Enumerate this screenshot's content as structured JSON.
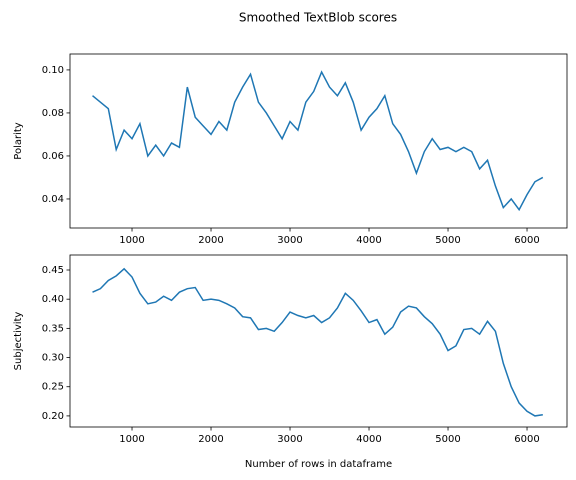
{
  "title": "Smoothed TextBlob scores",
  "chart_data": [
    {
      "type": "line",
      "ylabel": "Polarity",
      "x": [
        500,
        600,
        700,
        800,
        900,
        1000,
        1100,
        1200,
        1300,
        1400,
        1500,
        1600,
        1700,
        1800,
        1900,
        2000,
        2100,
        2200,
        2300,
        2400,
        2500,
        2600,
        2700,
        2800,
        2900,
        3000,
        3100,
        3200,
        3300,
        3400,
        3500,
        3600,
        3700,
        3800,
        3900,
        4000,
        4100,
        4200,
        4300,
        4400,
        4500,
        4600,
        4700,
        4800,
        4900,
        5000,
        5100,
        5200,
        5300,
        5400,
        5500,
        5600,
        5700,
        5800,
        5900,
        6000,
        6100,
        6200
      ],
      "series": [
        {
          "color": "#1f77b4",
          "values": [
            0.088,
            0.085,
            0.082,
            0.063,
            0.072,
            0.068,
            0.075,
            0.06,
            0.065,
            0.06,
            0.066,
            0.064,
            0.092,
            0.078,
            0.074,
            0.07,
            0.076,
            0.072,
            0.085,
            0.092,
            0.098,
            0.085,
            0.08,
            0.074,
            0.068,
            0.076,
            0.072,
            0.085,
            0.09,
            0.099,
            0.092,
            0.088,
            0.094,
            0.085,
            0.072,
            0.078,
            0.082,
            0.088,
            0.075,
            0.07,
            0.062,
            0.052,
            0.062,
            0.068,
            0.063,
            0.064,
            0.062,
            0.064,
            0.062,
            0.054,
            0.058,
            0.046,
            0.036,
            0.04,
            0.035,
            0.042,
            0.048,
            0.05
          ]
        }
      ],
      "xlim": [
        215,
        6506
      ],
      "xticks": [
        1000,
        2000,
        3000,
        4000,
        5000,
        6000
      ],
      "ylim": [
        0.0265,
        0.1074
      ],
      "yticks": [
        0.04,
        0.06,
        0.08,
        {
          "value": 0.1,
          "label": "0.10"
        }
      ]
    },
    {
      "type": "line",
      "xlabel": "Number of rows in dataframe",
      "ylabel": "Subjectivity",
      "x": [
        500,
        600,
        700,
        800,
        900,
        1000,
        1100,
        1200,
        1300,
        1400,
        1500,
        1600,
        1700,
        1800,
        1900,
        2000,
        2100,
        2200,
        2300,
        2400,
        2500,
        2600,
        2700,
        2800,
        2900,
        3000,
        3100,
        3200,
        3300,
        3400,
        3500,
        3600,
        3700,
        3800,
        3900,
        4000,
        4100,
        4200,
        4300,
        4400,
        4500,
        4600,
        4700,
        4800,
        4900,
        5000,
        5100,
        5200,
        5300,
        5400,
        5500,
        5600,
        5700,
        5800,
        5900,
        6000,
        6100,
        6200
      ],
      "series": [
        {
          "color": "#1f77b4",
          "values": [
            0.412,
            0.418,
            0.432,
            0.44,
            0.452,
            0.438,
            0.41,
            0.392,
            0.395,
            0.405,
            0.398,
            0.412,
            0.418,
            0.42,
            0.398,
            0.4,
            0.398,
            0.392,
            0.385,
            0.37,
            0.368,
            0.348,
            0.35,
            0.345,
            0.36,
            0.378,
            0.372,
            0.368,
            0.372,
            0.36,
            0.368,
            0.385,
            0.41,
            0.398,
            0.38,
            0.36,
            0.365,
            0.34,
            0.352,
            0.378,
            0.388,
            0.385,
            0.37,
            0.358,
            0.34,
            0.312,
            0.32,
            0.348,
            0.35,
            0.34,
            0.362,
            0.345,
            0.29,
            0.25,
            0.222,
            0.208,
            0.2,
            0.202
          ]
        }
      ],
      "xlim": [
        215,
        6506
      ],
      "xticks": [
        1000,
        2000,
        3000,
        4000,
        5000,
        6000
      ],
      "ylim": [
        0.181,
        0.4757
      ],
      "yticks": [
        {
          "value": 0.2,
          "label": "0.20"
        },
        0.25,
        {
          "value": 0.3,
          "label": "0.30"
        },
        0.35,
        {
          "value": 0.4,
          "label": "0.40"
        },
        0.45
      ]
    }
  ]
}
